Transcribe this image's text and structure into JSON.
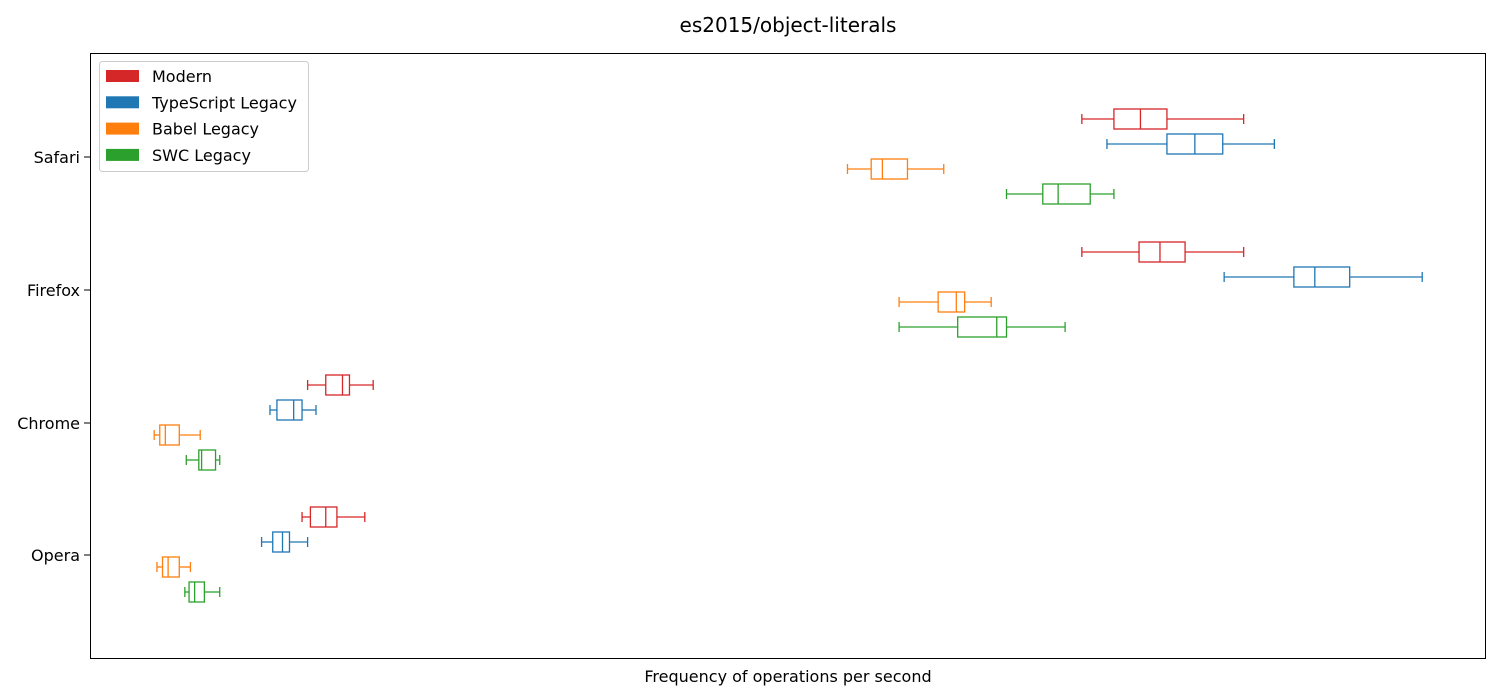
{
  "chart_data": {
    "type": "box",
    "orientation": "horizontal",
    "title": "es2015/object-literals",
    "xlabel": "Frequency of operations per second",
    "ylabel": "",
    "x_ticks_visible": false,
    "xlim": [
      0,
      100
    ],
    "grid": false,
    "legend_position": "top-left",
    "categories": [
      "Safari",
      "Firefox",
      "Chrome",
      "Opera"
    ],
    "series": [
      {
        "name": "Modern",
        "color": "#d62728",
        "boxes": [
          {
            "category": "Safari",
            "whisker_low": 71.1,
            "q1": 73.4,
            "median": 75.3,
            "q3": 77.2,
            "whisker_high": 82.7
          },
          {
            "category": "Firefox",
            "whisker_low": 71.1,
            "q1": 75.2,
            "median": 76.7,
            "q3": 78.5,
            "whisker_high": 82.7
          },
          {
            "category": "Chrome",
            "whisker_low": 15.6,
            "q1": 16.9,
            "median": 18.1,
            "q3": 18.6,
            "whisker_high": 20.3
          },
          {
            "category": "Opera",
            "whisker_low": 15.2,
            "q1": 15.8,
            "median": 16.9,
            "q3": 17.7,
            "whisker_high": 19.7
          }
        ]
      },
      {
        "name": "TypeScript Legacy",
        "color": "#1f77b4",
        "boxes": [
          {
            "category": "Safari",
            "whisker_low": 72.9,
            "q1": 77.2,
            "median": 79.2,
            "q3": 81.2,
            "whisker_high": 84.9
          },
          {
            "category": "Firefox",
            "whisker_low": 81.3,
            "q1": 86.3,
            "median": 87.8,
            "q3": 90.3,
            "whisker_high": 95.5
          },
          {
            "category": "Chrome",
            "whisker_low": 12.9,
            "q1": 13.4,
            "median": 14.6,
            "q3": 15.2,
            "whisker_high": 16.2
          },
          {
            "category": "Opera",
            "whisker_low": 12.3,
            "q1": 13.1,
            "median": 13.8,
            "q3": 14.3,
            "whisker_high": 15.6
          }
        ]
      },
      {
        "name": "Babel Legacy",
        "color": "#ff7f0e",
        "boxes": [
          {
            "category": "Safari",
            "whisker_low": 54.3,
            "q1": 56.0,
            "median": 56.8,
            "q3": 58.6,
            "whisker_high": 61.2
          },
          {
            "category": "Firefox",
            "whisker_low": 58.0,
            "q1": 60.8,
            "median": 62.1,
            "q3": 62.7,
            "whisker_high": 64.6
          },
          {
            "category": "Chrome",
            "whisker_low": 4.6,
            "q1": 5.0,
            "median": 5.4,
            "q3": 6.4,
            "whisker_high": 7.9
          },
          {
            "category": "Opera",
            "whisker_low": 4.8,
            "q1": 5.2,
            "median": 5.6,
            "q3": 6.4,
            "whisker_high": 7.2
          }
        ]
      },
      {
        "name": "SWC Legacy",
        "color": "#2ca02c",
        "boxes": [
          {
            "category": "Safari",
            "whisker_low": 65.7,
            "q1": 68.3,
            "median": 69.4,
            "q3": 71.7,
            "whisker_high": 73.4
          },
          {
            "category": "Firefox",
            "whisker_low": 58.0,
            "q1": 62.2,
            "median": 65.0,
            "q3": 65.7,
            "whisker_high": 69.9
          },
          {
            "category": "Chrome",
            "whisker_low": 6.9,
            "q1": 7.8,
            "median": 8.0,
            "q3": 9.0,
            "whisker_high": 9.3
          },
          {
            "category": "Opera",
            "whisker_low": 6.8,
            "q1": 7.1,
            "median": 7.5,
            "q3": 8.2,
            "whisker_high": 9.3
          }
        ]
      }
    ]
  }
}
